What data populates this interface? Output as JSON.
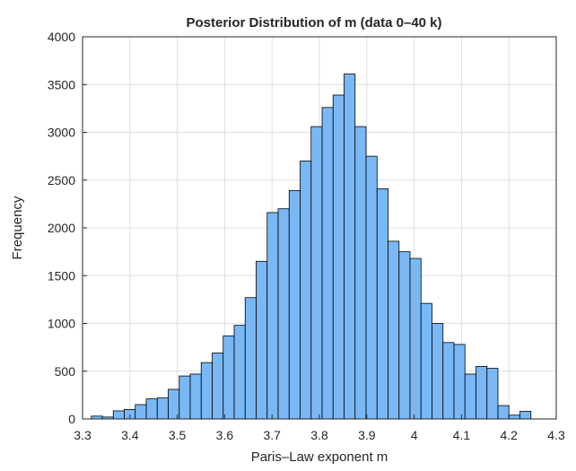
{
  "chart_data": {
    "type": "histogram",
    "title": "Posterior Distribution of  m  (data 0–40 k)",
    "xlabel": "Paris–Law exponent  m",
    "ylabel": "Frequency",
    "xlim": [
      3.3,
      4.3
    ],
    "ylim": [
      0,
      4000
    ],
    "xticks": [
      3.3,
      3.4,
      3.5,
      3.6,
      3.7,
      3.8,
      3.9,
      4.0,
      4.1,
      4.2,
      4.3
    ],
    "xtick_labels": [
      "3.3",
      "3.4",
      "3.5",
      "3.6",
      "3.7",
      "3.8",
      "3.9",
      "4",
      "4.1",
      "4.2",
      "4.3"
    ],
    "yticks": [
      0,
      500,
      1000,
      1500,
      2000,
      2500,
      3000,
      3500,
      4000
    ],
    "ytick_labels": [
      "0",
      "500",
      "1000",
      "1500",
      "2000",
      "2500",
      "3000",
      "3500",
      "4000"
    ],
    "grid": true,
    "bin_start": 3.3185,
    "bin_width": 0.0232,
    "counts": [
      30,
      20,
      85,
      100,
      150,
      210,
      220,
      310,
      450,
      470,
      590,
      690,
      870,
      980,
      1270,
      1650,
      2160,
      2200,
      2390,
      2700,
      3060,
      3260,
      3390,
      3610,
      3060,
      2750,
      2410,
      1860,
      1750,
      1680,
      1210,
      1000,
      800,
      780,
      470,
      550,
      530,
      140,
      40,
      80
    ],
    "bar_color": "#7ab8f5",
    "edge_color": "#000000"
  }
}
